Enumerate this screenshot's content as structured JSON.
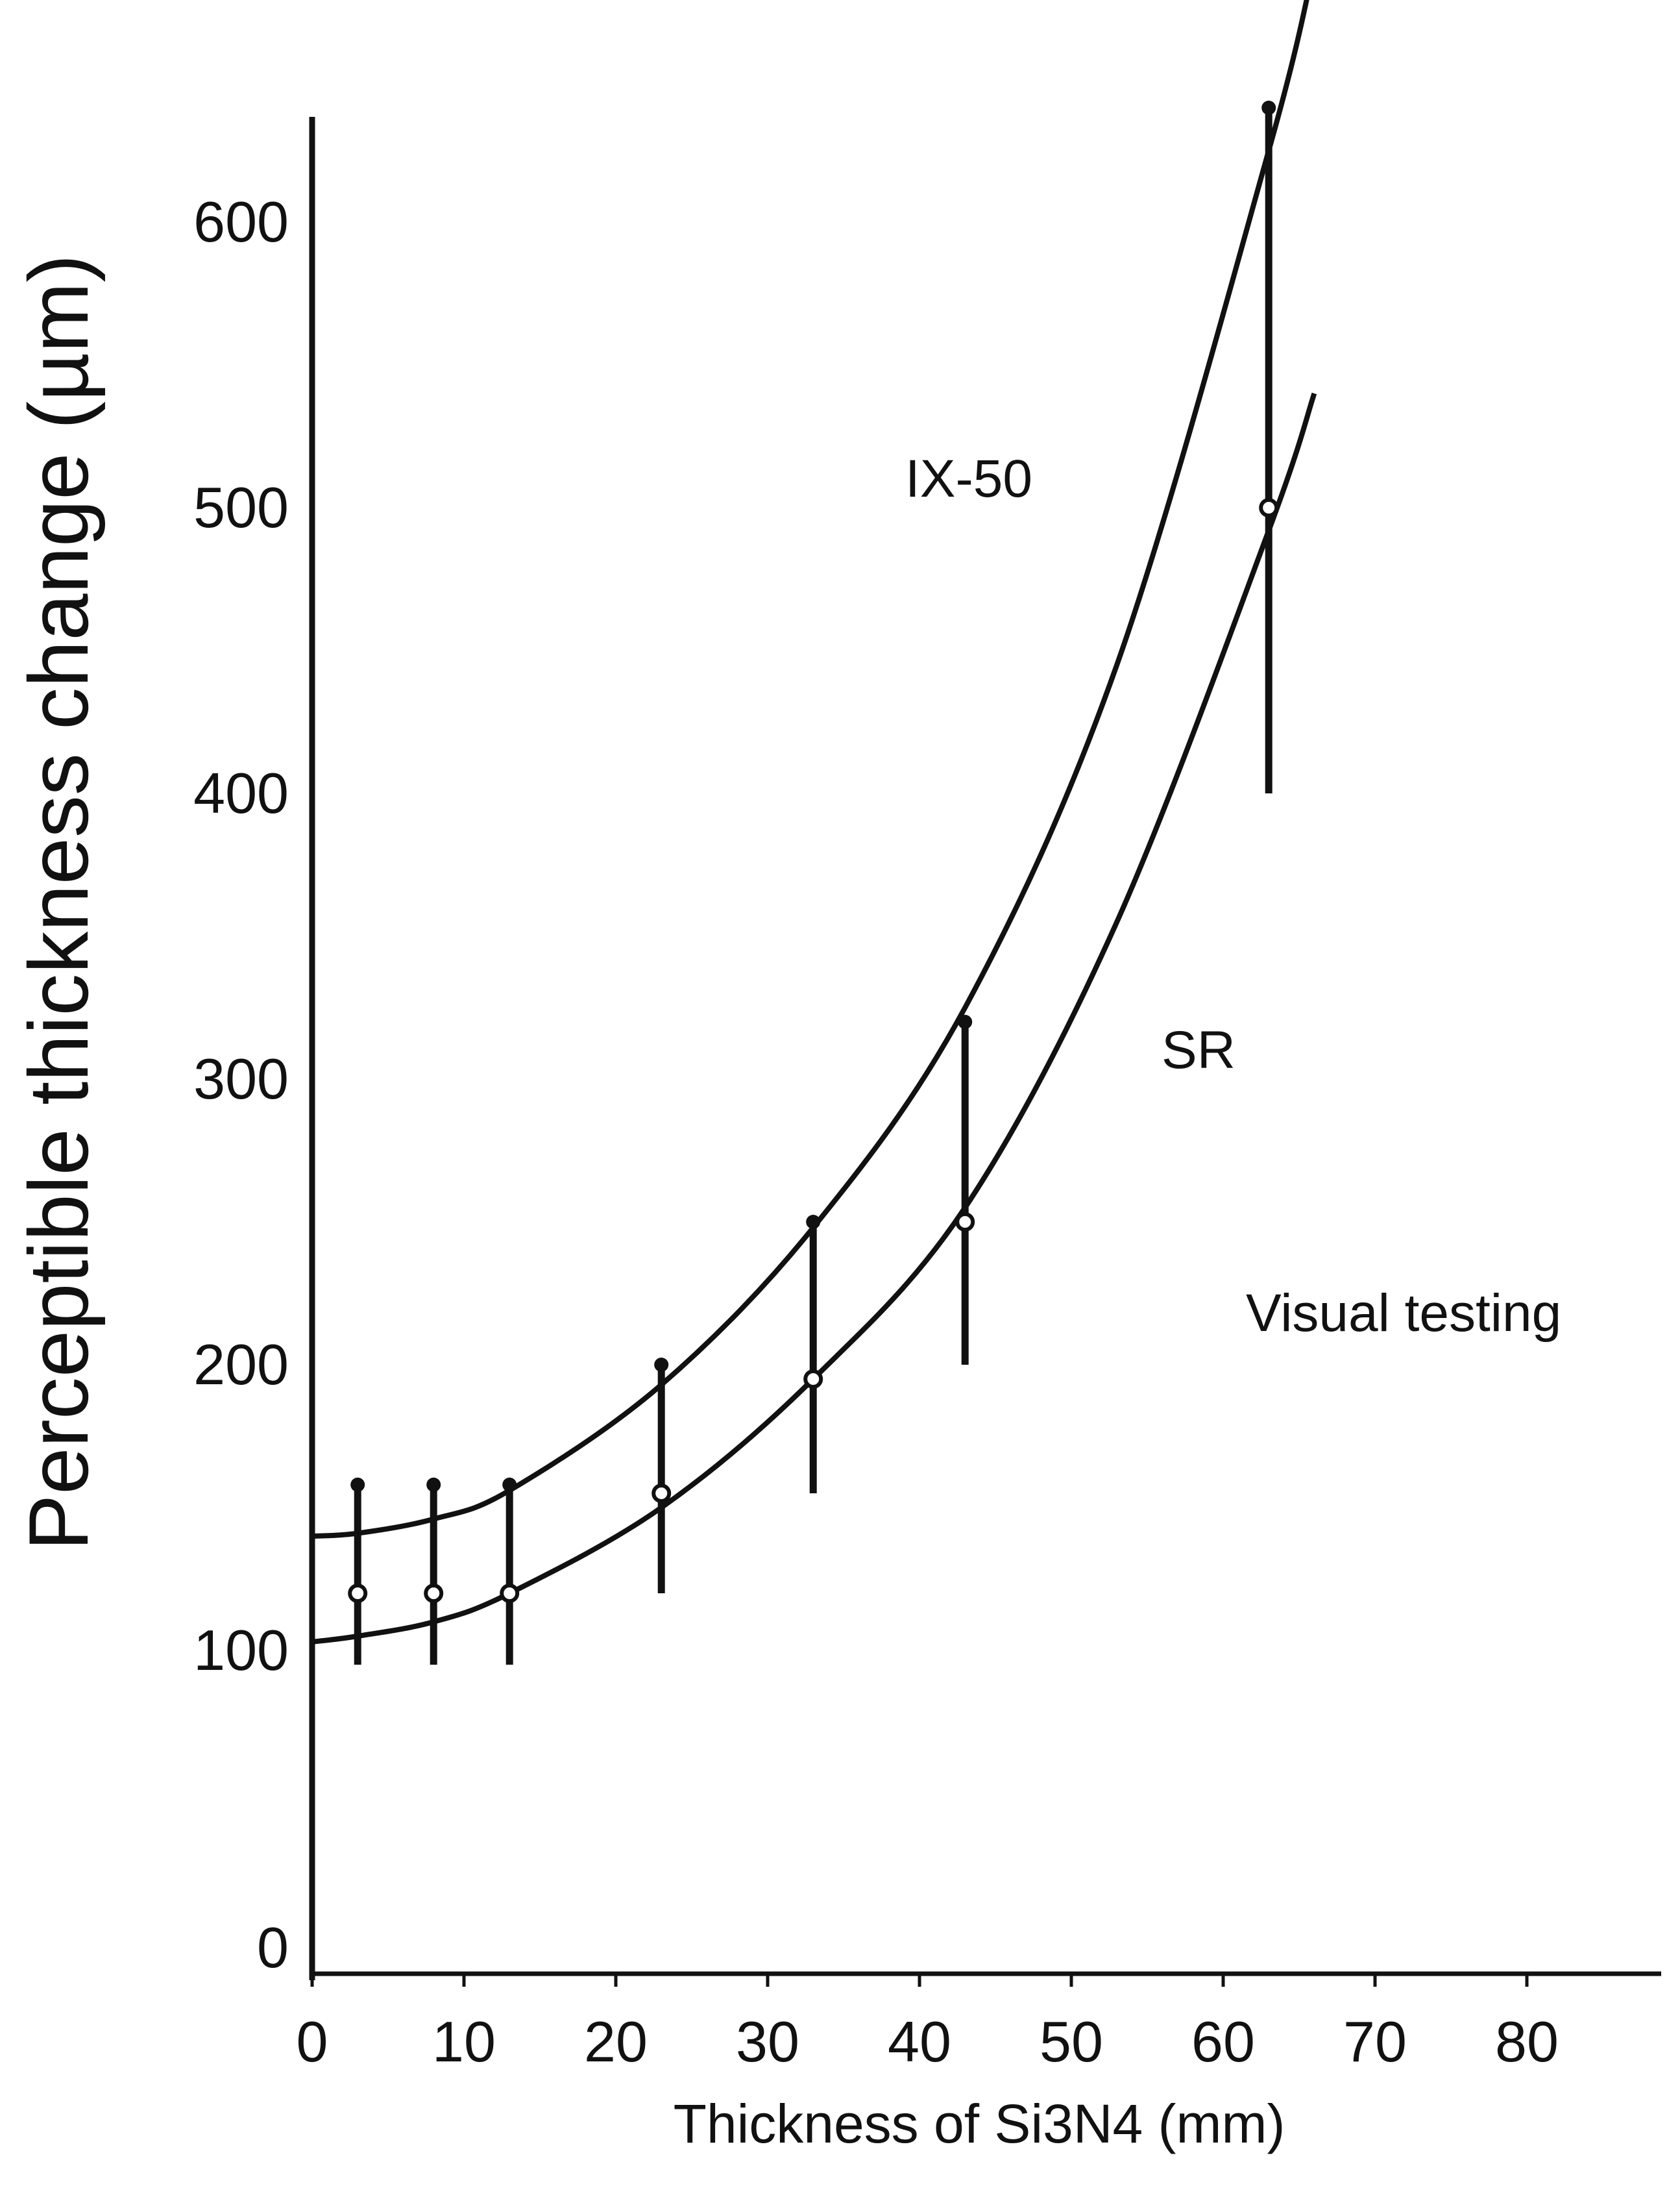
{
  "chart_data": {
    "type": "line",
    "title": "",
    "xlabel": "Thickness of Si3N4 (mm)",
    "ylabel": "Perceptible thickness change (µm)",
    "xlim": [
      0,
      90
    ],
    "ylim": [
      0,
      650
    ],
    "xticks": [
      "0",
      "10",
      "20",
      "30",
      "40",
      "50",
      "60",
      "70",
      "80"
    ],
    "yticks": [
      "0",
      "100",
      "200",
      "300",
      "400",
      "500",
      "600"
    ],
    "grid": false,
    "series": [
      {
        "name": "IX-50",
        "marker": "filled",
        "points": [
          [
            3,
            158
          ],
          [
            8,
            158
          ],
          [
            13,
            158
          ],
          [
            23,
            200
          ],
          [
            33,
            250
          ],
          [
            43,
            320
          ],
          [
            63,
            640
          ]
        ],
        "curve": [
          [
            0,
            140
          ],
          [
            3,
            141
          ],
          [
            8,
            146
          ],
          [
            13,
            156
          ],
          [
            23,
            193
          ],
          [
            33,
            248
          ],
          [
            43,
            325
          ],
          [
            53,
            445
          ],
          [
            63,
            625
          ],
          [
            66,
            690
          ]
        ]
      },
      {
        "name": "SR",
        "marker": "open",
        "points": [
          [
            3,
            120
          ],
          [
            8,
            120
          ],
          [
            13,
            120
          ],
          [
            23,
            155
          ],
          [
            33,
            195
          ],
          [
            43,
            250
          ],
          [
            63,
            500
          ]
        ],
        "curve": [
          [
            0,
            103
          ],
          [
            3,
            105
          ],
          [
            8,
            110
          ],
          [
            13,
            120
          ],
          [
            23,
            150
          ],
          [
            33,
            195
          ],
          [
            43,
            255
          ],
          [
            53,
            355
          ],
          [
            63,
            492
          ],
          [
            66,
            540
          ]
        ]
      }
    ],
    "error_bars": [
      {
        "x": 3,
        "low": 95,
        "high": 158
      },
      {
        "x": 8,
        "low": 95,
        "high": 158
      },
      {
        "x": 13,
        "low": 95,
        "high": 158
      },
      {
        "x": 23,
        "low": 120,
        "high": 200
      },
      {
        "x": 33,
        "low": 155,
        "high": 250
      },
      {
        "x": 43,
        "low": 200,
        "high": 320
      },
      {
        "x": 63,
        "low": 400,
        "high": 640
      }
    ],
    "annotations": [
      "IX-50",
      "SR",
      "Visual testing"
    ]
  }
}
